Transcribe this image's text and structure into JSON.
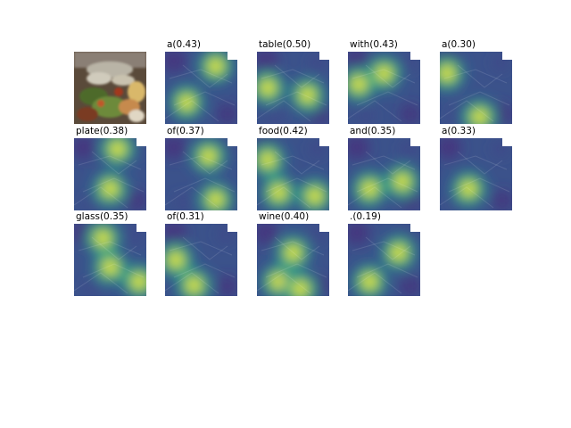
{
  "figure": {
    "panels": [
      {
        "label": "",
        "kind": "photo"
      },
      {
        "label": "a(0.43)",
        "kind": "attention",
        "hot": [
          [
            0.7,
            0.2
          ],
          [
            0.3,
            0.7
          ]
        ]
      },
      {
        "label": "table(0.50)",
        "kind": "attention",
        "hot": [
          [
            0.15,
            0.5
          ],
          [
            0.7,
            0.6
          ]
        ]
      },
      {
        "label": "with(0.43)",
        "kind": "attention",
        "hot": [
          [
            0.15,
            0.45
          ],
          [
            0.5,
            0.3
          ]
        ]
      },
      {
        "label": "a(0.30)",
        "kind": "attention",
        "hot": [
          [
            0.55,
            0.9
          ],
          [
            0.1,
            0.3
          ]
        ]
      },
      {
        "label": "plate(0.38)",
        "kind": "attention",
        "hot": [
          [
            0.6,
            0.15
          ],
          [
            0.5,
            0.7
          ]
        ]
      },
      {
        "label": "of(0.37)",
        "kind": "attention",
        "hot": [
          [
            0.6,
            0.25
          ],
          [
            0.7,
            0.85
          ]
        ]
      },
      {
        "label": "food(0.42)",
        "kind": "attention",
        "hot": [
          [
            0.3,
            0.75
          ],
          [
            0.15,
            0.3
          ],
          [
            0.8,
            0.8
          ]
        ]
      },
      {
        "label": "and(0.35)",
        "kind": "attention",
        "hot": [
          [
            0.3,
            0.7
          ],
          [
            0.75,
            0.6
          ]
        ]
      },
      {
        "label": "a(0.33)",
        "kind": "attention",
        "hot": [
          [
            0.4,
            0.7
          ]
        ]
      },
      {
        "label": "glass(0.35)",
        "kind": "attention",
        "hot": [
          [
            0.5,
            0.6
          ],
          [
            0.9,
            0.8
          ],
          [
            0.4,
            0.2
          ]
        ]
      },
      {
        "label": "of(0.31)",
        "kind": "attention",
        "hot": [
          [
            0.4,
            0.85
          ],
          [
            0.15,
            0.5
          ]
        ]
      },
      {
        "label": "wine(0.40)",
        "kind": "attention",
        "hot": [
          [
            0.3,
            0.8
          ],
          [
            0.6,
            0.9
          ],
          [
            0.5,
            0.4
          ]
        ]
      },
      {
        "label": ".(0.19)",
        "kind": "attention",
        "hot": [
          [
            0.3,
            0.8
          ],
          [
            0.7,
            0.4
          ]
        ]
      }
    ]
  }
}
